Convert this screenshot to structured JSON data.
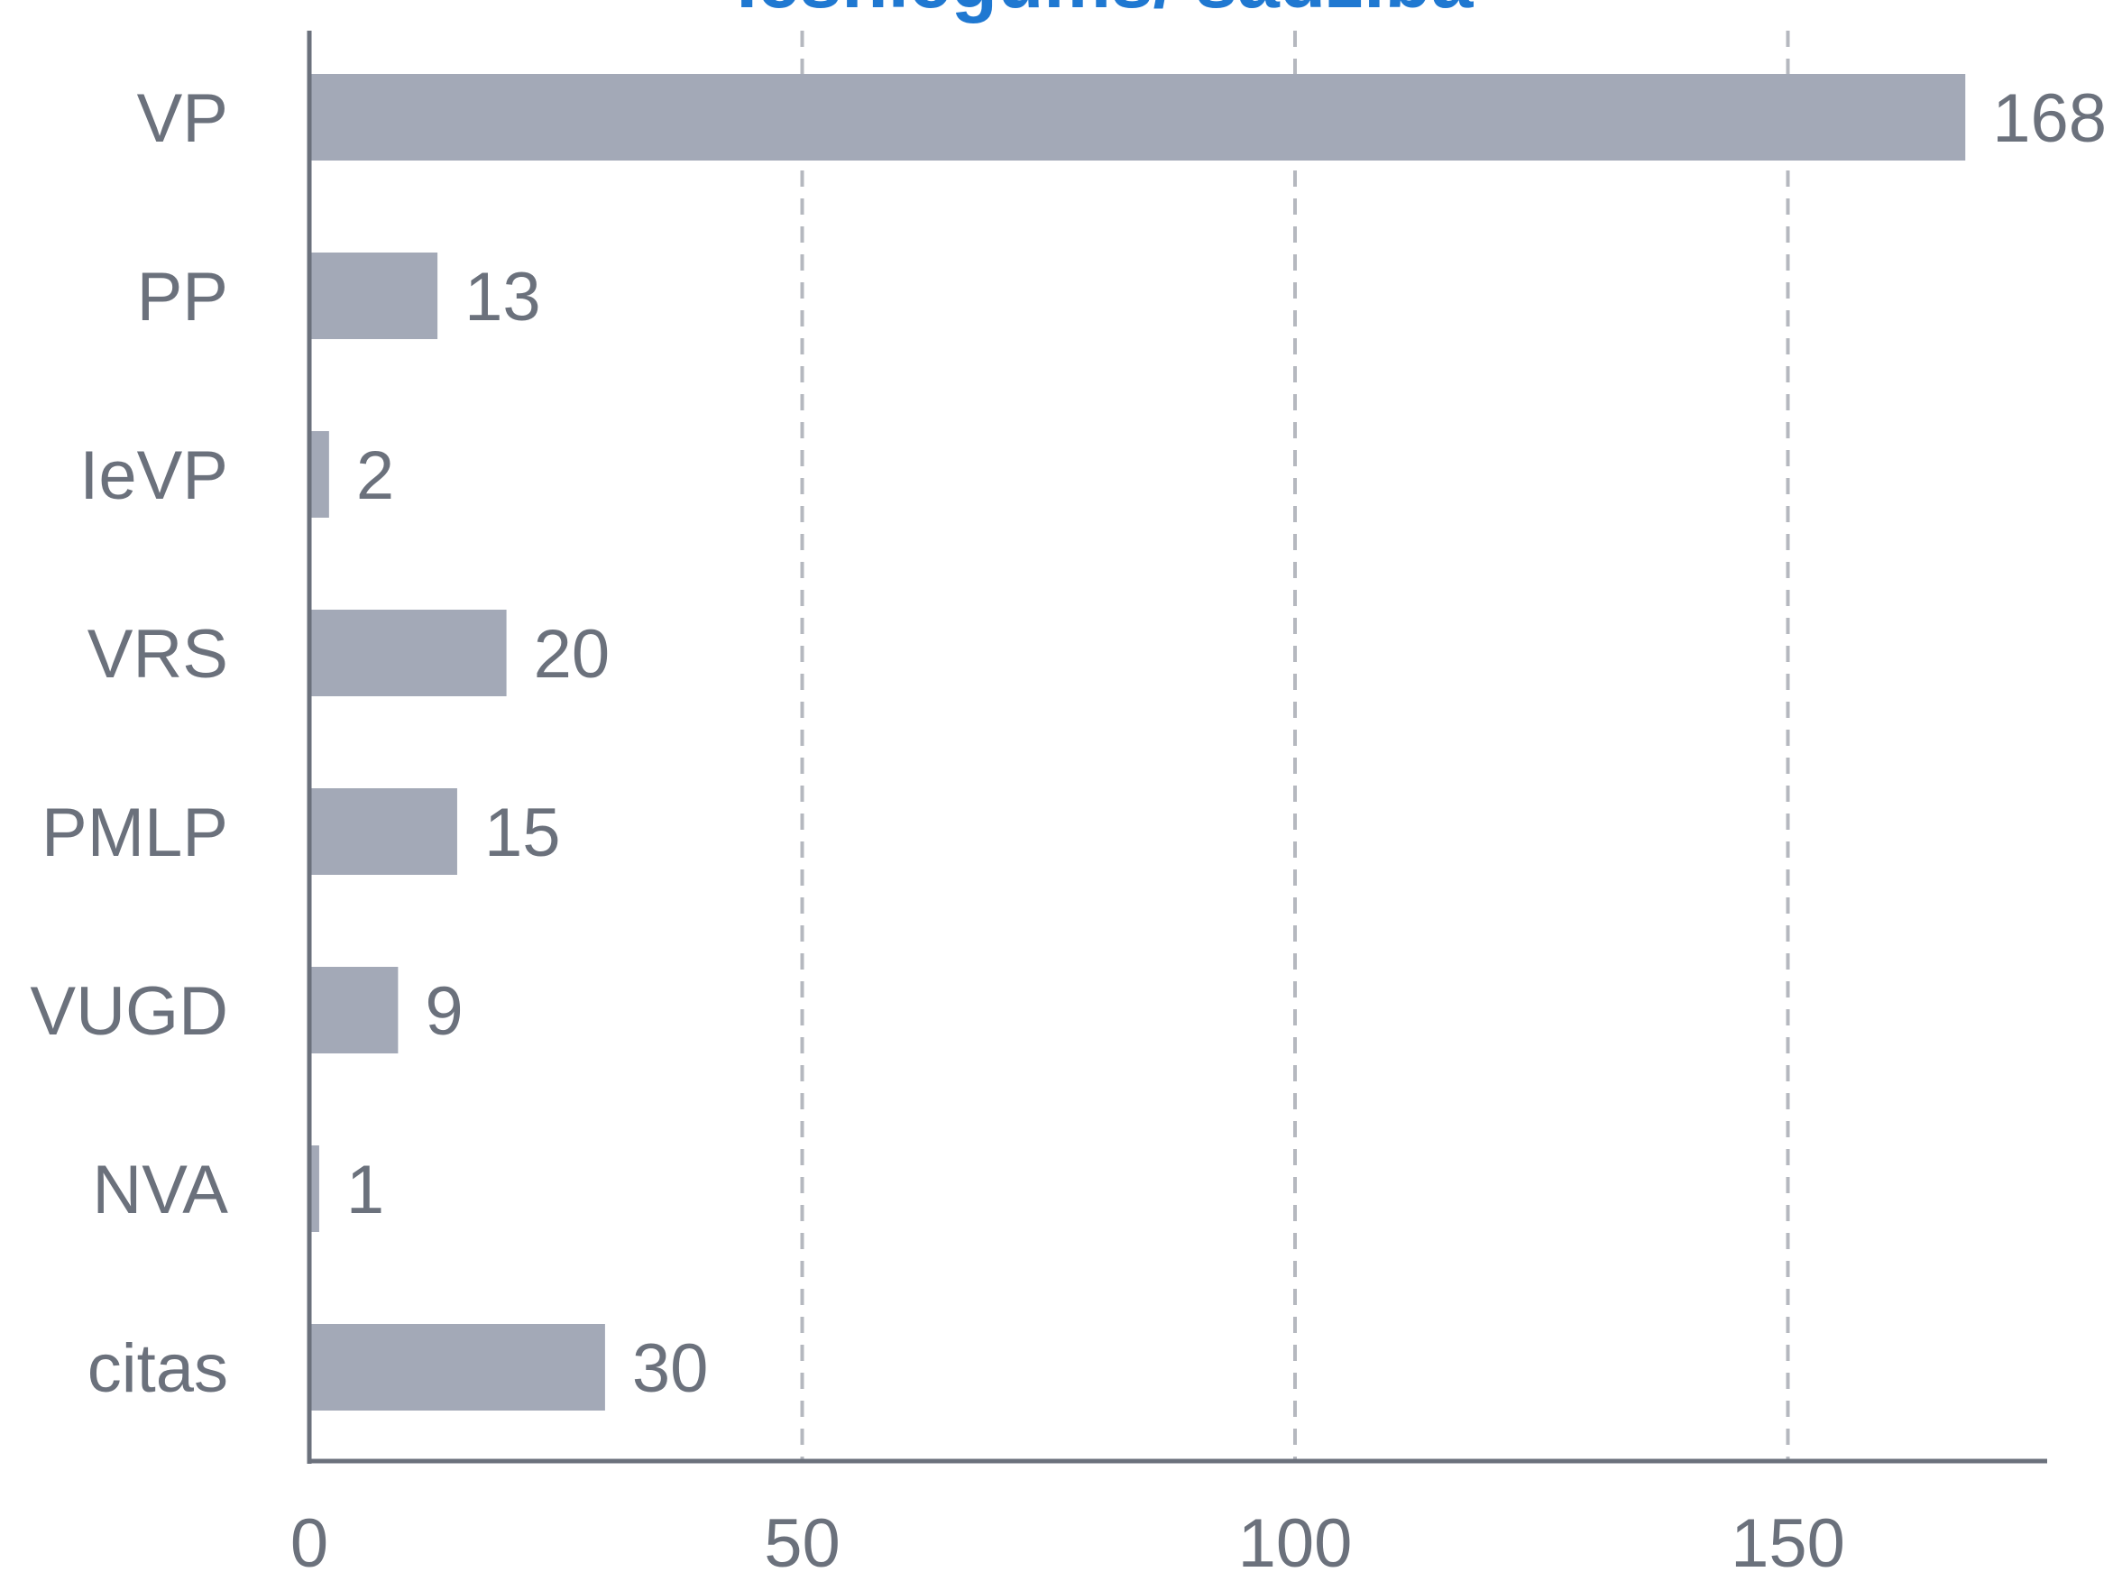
{
  "chart_data": {
    "type": "bar",
    "orientation": "horizontal",
    "title": "Iesniegums/ sadzība",
    "categories": [
      "VP",
      "PP",
      "IeVP",
      "VRS",
      "PMLP",
      "VUGD",
      "NVA",
      "citas"
    ],
    "values": [
      168,
      13,
      2,
      20,
      15,
      9,
      1,
      30
    ],
    "xlim": [
      0,
      176
    ],
    "xticks": [
      0,
      50,
      100,
      150
    ],
    "grid": true,
    "gridlines_at": [
      50,
      100,
      150
    ],
    "bar_color": "#a3a9b7",
    "title_color": "#1f78d1",
    "text_color": "#6b717c",
    "data_labels": true
  }
}
